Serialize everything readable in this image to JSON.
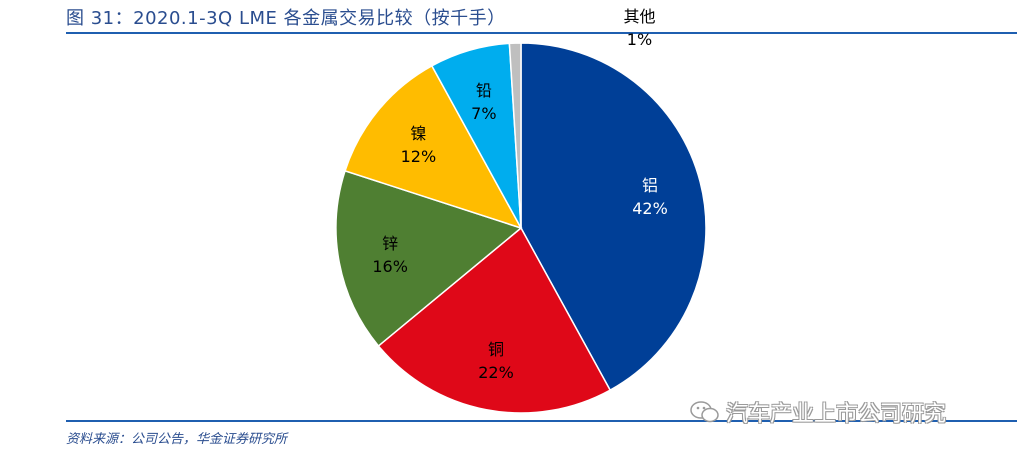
{
  "figure": {
    "title": "图 31：2020.1-3Q LME 各金属交易比较（按千手）",
    "source": "资料来源：公司公告，华金证券研究所",
    "watermark": "汽车产业上市公司研究"
  },
  "chart_data": {
    "type": "pie",
    "title": "",
    "slices": [
      {
        "label": "铝",
        "value": 42,
        "value_label": "42%",
        "color": "#003f97",
        "text_color": "#ffffff"
      },
      {
        "label": "铜",
        "value": 22,
        "value_label": "22%",
        "color": "#df0818",
        "text_color": "#000000"
      },
      {
        "label": "锌",
        "value": 16,
        "value_label": "16%",
        "color": "#4f7f32",
        "text_color": "#000000"
      },
      {
        "label": "镍",
        "value": 12,
        "value_label": "12%",
        "color": "#ffbc00",
        "text_color": "#000000"
      },
      {
        "label": "铅",
        "value": 7,
        "value_label": "7%",
        "color": "#00adee",
        "text_color": "#000000"
      },
      {
        "label": "其他",
        "value": 1,
        "value_label": "1%",
        "color": "#bfbfbf",
        "text_color": "#000000"
      }
    ]
  }
}
